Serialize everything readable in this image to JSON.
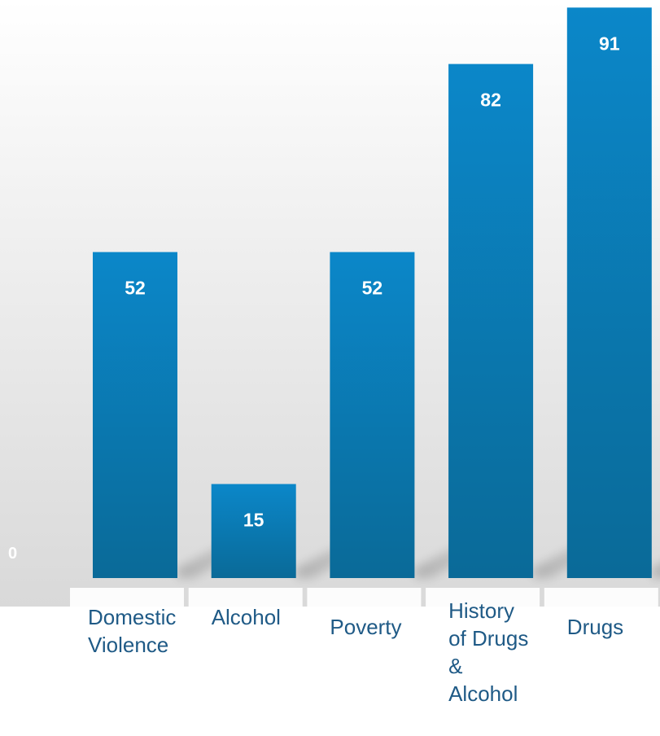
{
  "chart_data": {
    "type": "bar",
    "categories": [
      [
        "Domestic",
        "Violence"
      ],
      [
        "Alcohol"
      ],
      [
        "Poverty"
      ],
      [
        "History",
        "of Drugs",
        "&",
        "Alcohol"
      ],
      [
        "Drugs"
      ]
    ],
    "values": [
      52,
      15,
      52,
      82,
      91
    ],
    "ylim": [
      0,
      100
    ],
    "y_zero_label": "0",
    "data_labels": [
      "52",
      "15",
      "52",
      "82",
      "91"
    ],
    "grid": false,
    "legend": "none",
    "colors": {
      "bar_top": "#0b87c9",
      "bar_bottom": "#0a6a98",
      "data_label": "#ffffff",
      "category_label": "#1f5a86",
      "background_top": "#ffffff",
      "background_bottom": "#d9d9d9"
    }
  }
}
